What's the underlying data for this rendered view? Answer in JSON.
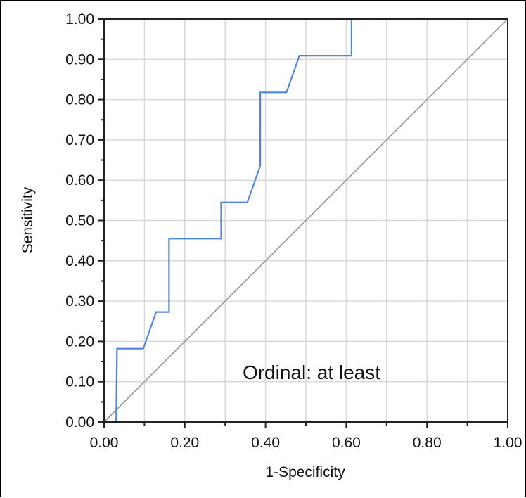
{
  "chart_data": {
    "type": "line",
    "xlabel": "1-Specificity",
    "ylabel": "Sensitivity",
    "xlim": [
      0,
      1
    ],
    "ylim": [
      0,
      1
    ],
    "xticks": [
      "0.00",
      "0.20",
      "0.40",
      "0.60",
      "0.80",
      "1.00"
    ],
    "yticks": [
      "0.00",
      "0.10",
      "0.20",
      "0.30",
      "0.40",
      "0.50",
      "0.60",
      "0.70",
      "0.80",
      "0.90",
      "1.00"
    ],
    "grid": true,
    "annotation": "Ordinal: at least",
    "series": [
      {
        "color": "#4f86e0",
        "x": [
          0.0,
          0.03,
          0.032,
          0.097,
          0.129,
          0.161,
          0.161,
          0.29,
          0.29,
          0.355,
          0.387,
          0.387,
          0.452,
          0.484,
          0.613,
          0.613
        ],
        "y": [
          0.0,
          0.0,
          0.182,
          0.182,
          0.273,
          0.273,
          0.455,
          0.455,
          0.545,
          0.545,
          0.636,
          0.818,
          0.818,
          0.909,
          0.909,
          1.0
        ]
      },
      {
        "color": "#999999",
        "x": [
          0,
          1
        ],
        "y": [
          0,
          1
        ]
      }
    ]
  }
}
